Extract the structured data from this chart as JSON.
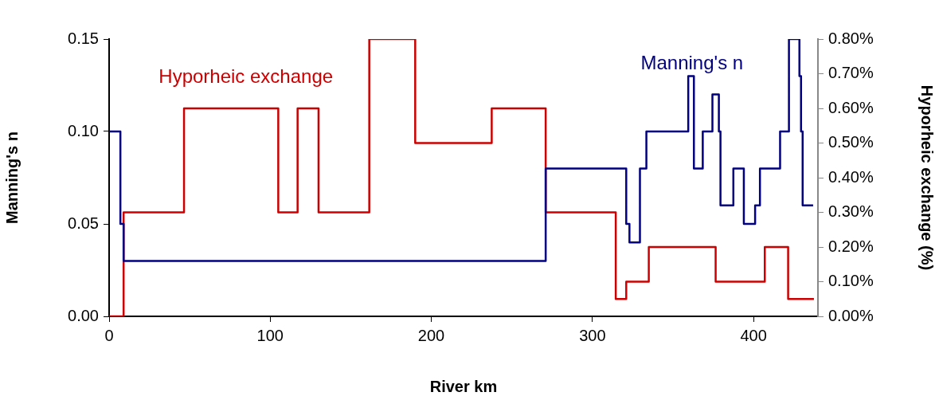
{
  "chart_data": {
    "type": "step",
    "xlabel": "River km",
    "ylabel": "Manning's n",
    "y2label": "Hyporheic exchange (%)",
    "xlim": [
      0,
      440
    ],
    "xticks": [
      0,
      100,
      200,
      300,
      400
    ],
    "ylim": [
      0,
      0.15
    ],
    "yticks": [
      {
        "value": 0,
        "label": "0.00"
      },
      {
        "value": 0.05,
        "label": "0.05"
      },
      {
        "value": 0.1,
        "label": "0.10"
      },
      {
        "value": 0.15,
        "label": "0.15"
      }
    ],
    "y2lim": [
      0,
      0.8
    ],
    "y2ticks": [
      {
        "value": 0,
        "label": "0.00%"
      },
      {
        "value": 0.1,
        "label": "0.10%"
      },
      {
        "value": 0.2,
        "label": "0.20%"
      },
      {
        "value": 0.3,
        "label": "0.30%"
      },
      {
        "value": 0.4,
        "label": "0.40%"
      },
      {
        "value": 0.5,
        "label": "0.50%"
      },
      {
        "value": 0.6,
        "label": "0.60%"
      },
      {
        "value": 0.7,
        "label": "0.70%"
      },
      {
        "value": 0.8,
        "label": "0.80%"
      }
    ],
    "grid": false,
    "legend": false,
    "marker": "none",
    "line_style": "solid",
    "series": [
      {
        "name": "Manning's n",
        "color": "#000080",
        "x": [
          0,
          7,
          9,
          271,
          321,
          323,
          329.5,
          333.5,
          359.5,
          363,
          368.5,
          374.5,
          378.5,
          379.5,
          387.5,
          394,
          401,
          404,
          416.5,
          422,
          428.5,
          429.5,
          430.5,
          437
        ],
        "values": [
          0.1,
          0.05,
          0.03,
          0.08,
          0.05,
          0.04,
          0.08,
          0.1,
          0.13,
          0.08,
          0.1,
          0.12,
          0.1,
          0.06,
          0.08,
          0.05,
          0.06,
          0.08,
          0.1,
          0.15,
          0.13,
          0.1,
          0.06,
          0.06
        ]
      },
      {
        "name": "Hyporheic exchange",
        "color": "#cc0000",
        "axis": "y2",
        "x": [
          0,
          9,
          46.5,
          105,
          117,
          130,
          161.5,
          190,
          237.5,
          271,
          314.5,
          321,
          335,
          376.5,
          407,
          421.5,
          437.5
        ],
        "values": [
          0,
          0.3,
          0.6,
          0.3,
          0.6,
          0.3,
          0.8,
          0.5,
          0.6,
          0.3,
          0.05,
          0.1,
          0.2,
          0.1,
          0.2,
          0.05,
          0.05
        ]
      }
    ]
  }
}
